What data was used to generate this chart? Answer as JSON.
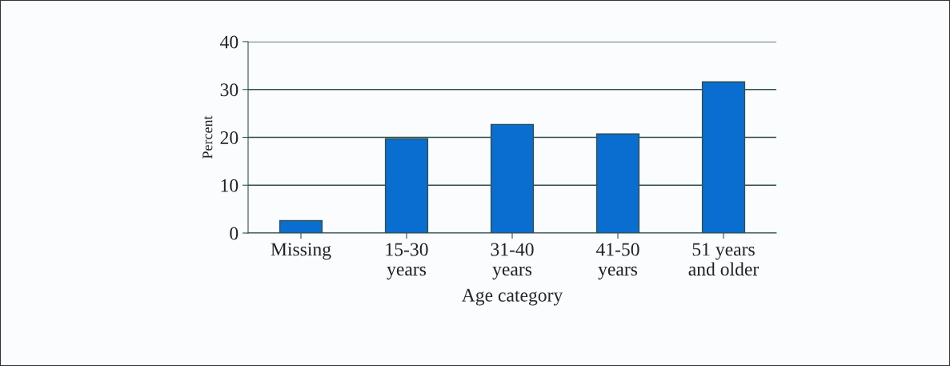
{
  "chart_data": {
    "type": "bar",
    "categories": [
      "Missing",
      "15-30\nyears",
      "31-40\nyears",
      "41-50\nyears",
      "51 years\nand older"
    ],
    "values": [
      2.6,
      19.7,
      22.7,
      20.7,
      31.6
    ],
    "color": "#0a6ed1",
    "xlabel": "Age category",
    "ylabel": "Percent",
    "ylim": [
      0,
      40
    ],
    "yticks": [
      0,
      10,
      20,
      30,
      40
    ],
    "grid": "y"
  }
}
